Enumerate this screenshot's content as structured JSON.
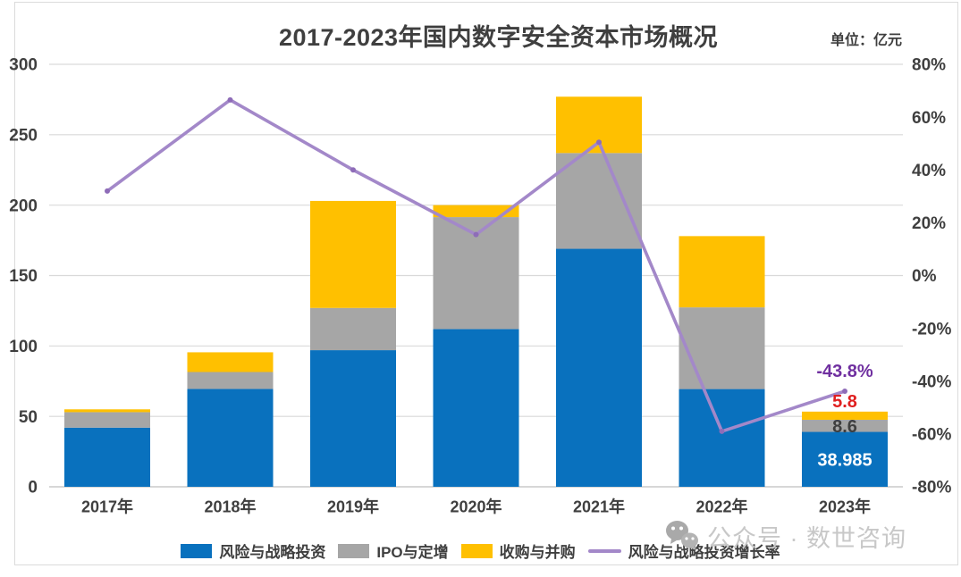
{
  "title": "2017-2023年国内数字安全资本市场概况",
  "unit_label": "单位：亿元",
  "watermark": {
    "icon": "wechat-icon",
    "text": "公众号 · 数世咨询"
  },
  "colors": {
    "bar_blue": "#0971be",
    "bar_gray": "#a6a6a6",
    "bar_yellow": "#ffc000",
    "line_purple": "#a388c9",
    "line_marker": "#8e6cb8",
    "label_purple": "#7030a0",
    "label_red": "#e02020",
    "label_dark": "#3f3f3f",
    "gridline": "#d9d9d9",
    "axis_baseline": "#bfbfbf",
    "axis_text": "#3f3f3f",
    "watermark_text": "#c8c8c8",
    "watermark_icon": "#a9a9a9",
    "frame": "#dbdbdb"
  },
  "chart_data": {
    "type": "bar",
    "subtype": "stacked-bars-with-line",
    "title": "2017-2023年国内数字安全资本市场概况",
    "unit": "亿元",
    "categories": [
      "2017年",
      "2018年",
      "2019年",
      "2020年",
      "2021年",
      "2022年",
      "2023年"
    ],
    "series": [
      {
        "name": "风险与战略投资",
        "type": "bar",
        "stack": "total",
        "color": "#0971be",
        "values": [
          42,
          69.5,
          97,
          112,
          169,
          69.4,
          38.985
        ]
      },
      {
        "name": "IPO与定增",
        "type": "bar",
        "stack": "total",
        "color": "#a6a6a6",
        "values": [
          11,
          12,
          30,
          79.5,
          68,
          58,
          8.6
        ]
      },
      {
        "name": "收购与并购",
        "type": "bar",
        "stack": "total",
        "color": "#ffc000",
        "values": [
          2,
          14,
          76,
          8.5,
          40,
          50.6,
          5.8
        ]
      },
      {
        "name": "风险与战略投资增长率",
        "type": "line",
        "axis": "right",
        "color": "#a388c9",
        "values": [
          32,
          66.5,
          40,
          15.5,
          50.5,
          -59,
          -43.8
        ]
      }
    ],
    "left_axis": {
      "min": 0,
      "max": 300,
      "tick_step": 50,
      "tick_labels": [
        "0",
        "50",
        "100",
        "150",
        "200",
        "250",
        "300"
      ]
    },
    "right_axis": {
      "min": -80,
      "max": 80,
      "tick_step": 20,
      "tick_labels": [
        "-80%",
        "-60%",
        "-40%",
        "-20%",
        "0%",
        "20%",
        "40%",
        "60%",
        "80%"
      ]
    },
    "value_labels": [
      {
        "category_index": 6,
        "series": "风险与战略投资增长率",
        "text": "-43.8%",
        "color": "#7030a0",
        "placement": "above-line"
      },
      {
        "category_index": 6,
        "series": "收购与并购",
        "text": "5.8",
        "color": "#e02020",
        "placement": "above-bar"
      },
      {
        "category_index": 6,
        "series": "IPO与定增",
        "text": "8.6",
        "color": "#3f3f3f",
        "placement": "inside"
      },
      {
        "category_index": 6,
        "series": "风险与战略投资",
        "text": "38.985",
        "color": "#ffffff",
        "placement": "inside"
      }
    ],
    "grid": true,
    "legend_position": "bottom"
  }
}
